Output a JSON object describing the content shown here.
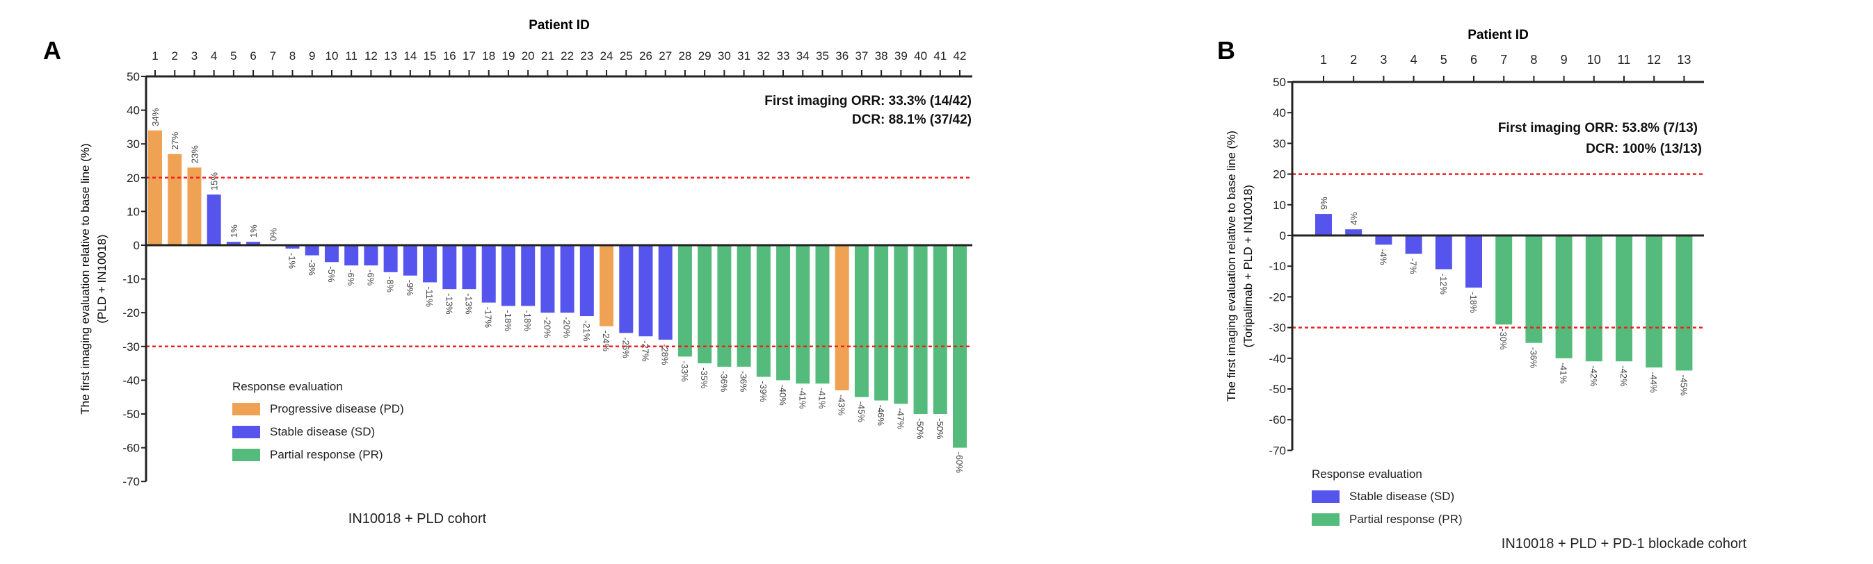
{
  "colors": {
    "PD": "#F0A254",
    "SD": "#5555EE",
    "PR": "#55BB7C",
    "threshold": "#EE2222"
  },
  "chart_data": [
    {
      "panel": "A",
      "type": "bar",
      "title": "Patient ID",
      "ylabel": "The first imaging evaluation relative to base line (%)",
      "ylabel2": "(PLD + IN10018)",
      "xlabel": "IN10018 + PLD cohort",
      "ylim": [
        -70,
        50
      ],
      "yticks": [
        50,
        40,
        30,
        20,
        10,
        0,
        -10,
        -20,
        -30,
        -40,
        -50,
        -60,
        -70
      ],
      "thresholds": [
        20,
        -30
      ],
      "categories": [
        "1",
        "2",
        "3",
        "4",
        "5",
        "6",
        "7",
        "8",
        "9",
        "10",
        "11",
        "12",
        "13",
        "14",
        "15",
        "16",
        "17",
        "18",
        "19",
        "20",
        "21",
        "22",
        "23",
        "24",
        "25",
        "26",
        "27",
        "28",
        "29",
        "30",
        "31",
        "32",
        "33",
        "34",
        "35",
        "36",
        "37",
        "38",
        "39",
        "40",
        "41",
        "42"
      ],
      "values": [
        34,
        27,
        23,
        15,
        1,
        1,
        0,
        -1,
        -3,
        -5,
        -6,
        -6,
        -8,
        -9,
        -11,
        -13,
        -13,
        -17,
        -18,
        -18,
        -20,
        -20,
        -21,
        -24,
        -26,
        -27,
        -28,
        -33,
        -35,
        -36,
        -36,
        -39,
        -40,
        -41,
        -41,
        -43,
        -45,
        -46,
        -47,
        -50,
        -50,
        -60
      ],
      "responses": [
        "PD",
        "PD",
        "PD",
        "SD",
        "SD",
        "SD",
        "SD",
        "SD",
        "SD",
        "SD",
        "SD",
        "SD",
        "SD",
        "SD",
        "SD",
        "SD",
        "SD",
        "SD",
        "SD",
        "SD",
        "SD",
        "SD",
        "SD",
        "PD",
        "SD",
        "SD",
        "SD",
        "PR",
        "PR",
        "PR",
        "PR",
        "PR",
        "PR",
        "PR",
        "PR",
        "PD",
        "PR",
        "PR",
        "PR",
        "PR",
        "PR",
        "PR"
      ],
      "annotations": [
        "First imaging ORR: 33.3% (14/42)",
        "DCR: 88.1% (37/42)"
      ],
      "legend": {
        "title": "Response evaluation",
        "entries": [
          {
            "key": "PD",
            "label": "Progressive disease (PD)"
          },
          {
            "key": "SD",
            "label": "Stable disease (SD)"
          },
          {
            "key": "PR",
            "label": "Partial response (PR)"
          }
        ]
      }
    },
    {
      "panel": "B",
      "type": "bar",
      "title": "Patient ID",
      "ylabel": "The first imaging evaluation relative to base line (%)",
      "ylabel2": "(Toripalimab + PLD + IN10018)",
      "xlabel": "IN10018 + PLD + PD-1 blockade cohort",
      "ylim": [
        -70,
        50
      ],
      "yticks": [
        50,
        40,
        30,
        20,
        10,
        0,
        -10,
        -20,
        -30,
        -40,
        -50,
        -60,
        -70
      ],
      "thresholds": [
        20,
        -30
      ],
      "categories": [
        "1",
        "2",
        "3",
        "4",
        "5",
        "6",
        "7",
        "8",
        "9",
        "10",
        "11",
        "12",
        "13"
      ],
      "values": [
        9,
        4,
        -4,
        -7,
        -12,
        -18,
        -30,
        -36,
        -41,
        -42,
        -42,
        -44,
        -45
      ],
      "bar_values": [
        7,
        2,
        -3,
        -6,
        -11,
        -17,
        -29,
        -35,
        -40,
        -41,
        -41,
        -43,
        -44
      ],
      "responses": [
        "SD",
        "SD",
        "SD",
        "SD",
        "SD",
        "SD",
        "PR",
        "PR",
        "PR",
        "PR",
        "PR",
        "PR",
        "PR"
      ],
      "annotations": [
        "First imaging ORR: 53.8% (7/13)",
        "DCR: 100% (13/13)"
      ],
      "legend": {
        "title": "Response evaluation",
        "entries": [
          {
            "key": "SD",
            "label": "Stable disease (SD)"
          },
          {
            "key": "PR",
            "label": "Partial response (PR)"
          }
        ]
      }
    }
  ]
}
